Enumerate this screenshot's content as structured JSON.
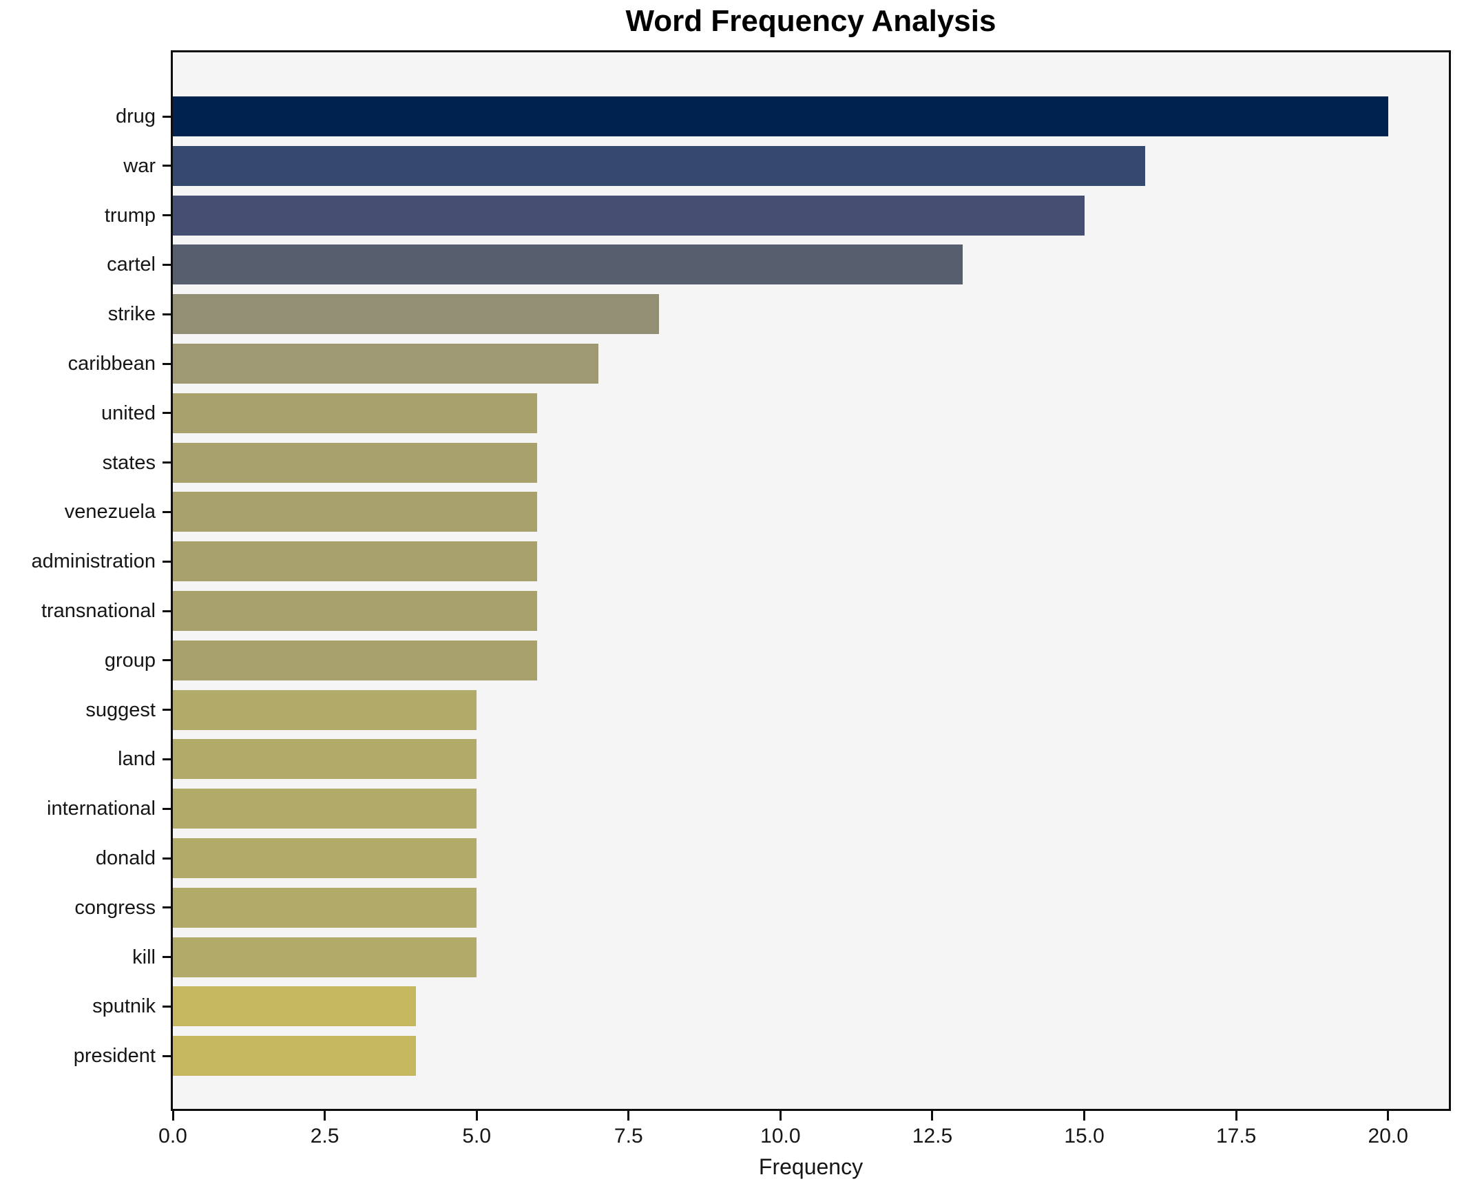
{
  "chart": {
    "title": "Word Frequency Analysis",
    "xlabel": "Frequency"
  },
  "chart_data": {
    "type": "bar",
    "orientation": "horizontal",
    "title": "Word Frequency Analysis",
    "xlabel": "Frequency",
    "ylabel": "",
    "categories": [
      "drug",
      "war",
      "trump",
      "cartel",
      "strike",
      "caribbean",
      "united",
      "states",
      "venezuela",
      "administration",
      "transnational",
      "group",
      "suggest",
      "land",
      "international",
      "donald",
      "congress",
      "kill",
      "sputnik",
      "president"
    ],
    "values": [
      20,
      16,
      15,
      13,
      8,
      7,
      6,
      6,
      6,
      6,
      6,
      6,
      5,
      5,
      5,
      5,
      5,
      5,
      4,
      4
    ],
    "bar_colors": [
      "#00224e",
      "#35486e",
      "#454f71",
      "#575f6e",
      "#928f74",
      "#9f9973",
      "#a9a16c",
      "#a9a16c",
      "#a9a16c",
      "#a9a16c",
      "#a9a16c",
      "#a9a16c",
      "#b2aa68",
      "#b2aa68",
      "#b2aa68",
      "#b2aa68",
      "#b2aa68",
      "#b2aa68",
      "#c5b75f",
      "#c5b75f"
    ],
    "xlim": [
      0,
      21
    ],
    "x_ticks": [
      0.0,
      2.5,
      5.0,
      7.5,
      10.0,
      12.5,
      15.0,
      17.5,
      20.0
    ],
    "x_tick_labels": [
      "0.0",
      "2.5",
      "5.0",
      "7.5",
      "10.0",
      "12.5",
      "15.0",
      "17.5",
      "20.0"
    ],
    "colormap": "cividis",
    "plot_bg": "#f5f5f6",
    "figure_bg": "#ffffff",
    "grid": false,
    "legend": false
  }
}
